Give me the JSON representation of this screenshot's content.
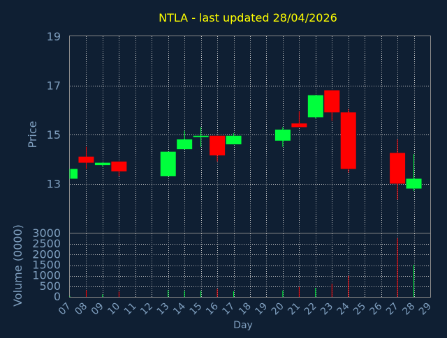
{
  "chart_data": [
    {
      "type": "candlestick",
      "title": "NTLA - last updated 28/04/2026",
      "ylabel": "Price",
      "xlabel": "",
      "ylim": [
        11,
        19
      ],
      "yticks": [
        13,
        15,
        17,
        19
      ],
      "xticks": [
        "07",
        "08",
        "09",
        "10",
        "11",
        "12",
        "13",
        "14",
        "15",
        "16",
        "17",
        "18",
        "19",
        "20",
        "21",
        "22",
        "23",
        "24",
        "25",
        "26",
        "27",
        "28",
        "29"
      ],
      "xlim": [
        7,
        29
      ],
      "grid": true,
      "colors": {
        "up": "#00ff3c",
        "down": "#ff0000"
      },
      "candles": [
        {
          "day": 7,
          "open": 13.2,
          "high": 13.6,
          "low": 13.2,
          "close": 13.6
        },
        {
          "day": 8,
          "open": 14.1,
          "high": 14.5,
          "low": 13.6,
          "close": 13.85
        },
        {
          "day": 9,
          "open": 13.75,
          "high": 13.85,
          "low": 13.7,
          "close": 13.85
        },
        {
          "day": 10,
          "open": 13.9,
          "high": 13.9,
          "low": 13.3,
          "close": 13.5
        },
        {
          "day": 13,
          "open": 13.3,
          "high": 14.3,
          "low": 13.3,
          "close": 14.3
        },
        {
          "day": 14,
          "open": 14.4,
          "high": 15.15,
          "low": 14.4,
          "close": 14.8
        },
        {
          "day": 15,
          "open": 14.9,
          "high": 15.3,
          "low": 14.5,
          "close": 14.95
        },
        {
          "day": 16,
          "open": 14.95,
          "high": 14.95,
          "low": 13.9,
          "close": 14.15
        },
        {
          "day": 17,
          "open": 14.6,
          "high": 15.05,
          "low": 14.6,
          "close": 14.95
        },
        {
          "day": 20,
          "open": 14.75,
          "high": 15.3,
          "low": 14.5,
          "close": 15.2
        },
        {
          "day": 21,
          "open": 15.45,
          "high": 15.95,
          "low": 15.3,
          "close": 15.3
        },
        {
          "day": 22,
          "open": 15.7,
          "high": 16.6,
          "low": 15.65,
          "close": 16.6
        },
        {
          "day": 23,
          "open": 16.8,
          "high": 16.8,
          "low": 15.55,
          "close": 15.9
        },
        {
          "day": 24,
          "open": 15.9,
          "high": 16.05,
          "low": 13.45,
          "close": 13.6
        },
        {
          "day": 27,
          "open": 14.25,
          "high": 14.8,
          "low": 12.35,
          "close": 13.0
        },
        {
          "day": 28,
          "open": 12.8,
          "high": 14.2,
          "low": 12.7,
          "close": 13.2
        }
      ]
    },
    {
      "type": "bar",
      "ylabel": "Volume (0000)",
      "xlabel": "Day",
      "ylim": [
        0,
        3000
      ],
      "yticks": [
        0,
        500,
        1000,
        1500,
        2000,
        2500,
        3000
      ],
      "xlim": [
        7,
        29
      ],
      "grid": true,
      "bars": [
        {
          "day": 7,
          "value": 30,
          "dir": "up"
        },
        {
          "day": 8,
          "value": 320,
          "dir": "down"
        },
        {
          "day": 9,
          "value": 120,
          "dir": "up"
        },
        {
          "day": 10,
          "value": 250,
          "dir": "down"
        },
        {
          "day": 13,
          "value": 330,
          "dir": "up"
        },
        {
          "day": 14,
          "value": 280,
          "dir": "up"
        },
        {
          "day": 15,
          "value": 290,
          "dir": "up"
        },
        {
          "day": 16,
          "value": 380,
          "dir": "down"
        },
        {
          "day": 17,
          "value": 260,
          "dir": "up"
        },
        {
          "day": 20,
          "value": 300,
          "dir": "up"
        },
        {
          "day": 21,
          "value": 470,
          "dir": "down"
        },
        {
          "day": 22,
          "value": 430,
          "dir": "up"
        },
        {
          "day": 23,
          "value": 620,
          "dir": "down"
        },
        {
          "day": 24,
          "value": 1000,
          "dir": "down"
        },
        {
          "day": 27,
          "value": 2780,
          "dir": "down"
        },
        {
          "day": 28,
          "value": 1520,
          "dir": "up"
        }
      ]
    }
  ]
}
